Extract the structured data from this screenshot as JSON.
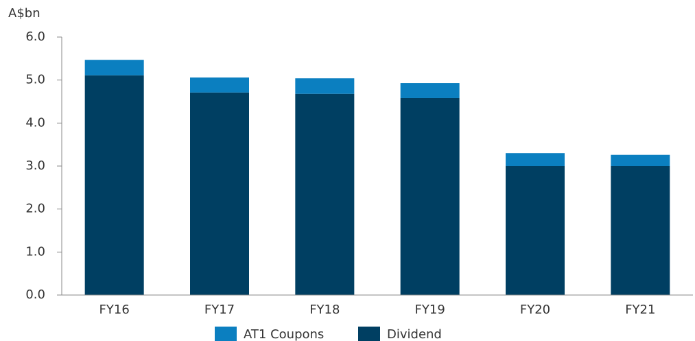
{
  "chart_data": {
    "type": "stacked_bar",
    "y_label": "A$bn",
    "categories": [
      "FY16",
      "FY17",
      "FY18",
      "FY19",
      "FY20",
      "FY21"
    ],
    "series": [
      {
        "name": "AT1 Coupons",
        "color": "#0b7fc0",
        "values": [
          0.36,
          0.35,
          0.36,
          0.35,
          0.3,
          0.26
        ]
      },
      {
        "name": "Dividend",
        "color": "#003f62",
        "values": [
          5.11,
          4.71,
          4.68,
          4.58,
          3.0,
          3.0
        ]
      }
    ],
    "ylim": [
      0,
      6
    ],
    "yticks": [
      {
        "value": 0,
        "label": "0.0"
      },
      {
        "value": 1,
        "label": "1.0"
      },
      {
        "value": 2,
        "label": "2.0"
      },
      {
        "value": 3,
        "label": "3.0"
      },
      {
        "value": 4,
        "label": "4.0"
      },
      {
        "value": 5,
        "label": "5.0"
      },
      {
        "value": 6,
        "label": "6.0"
      }
    ],
    "legend": "bottom"
  }
}
